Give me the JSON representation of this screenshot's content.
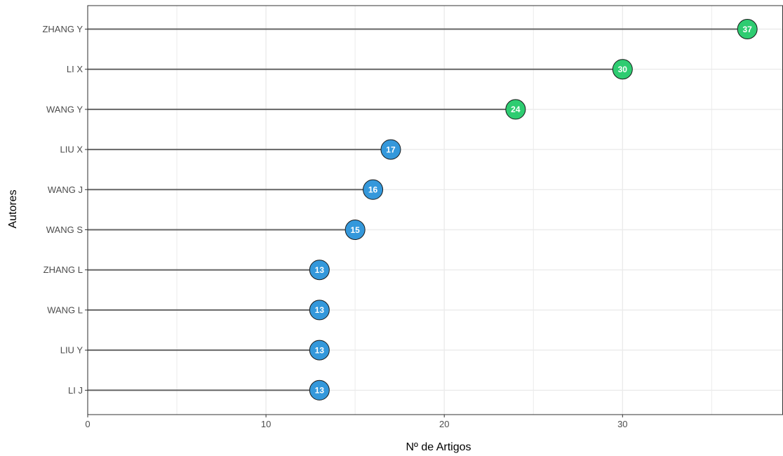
{
  "chart_data": {
    "type": "lollipop",
    "orientation": "horizontal",
    "xlabel": "Nº de Artigos",
    "ylabel": "Autores",
    "xlim": [
      0,
      39
    ],
    "x_ticks": [
      0,
      10,
      20,
      30
    ],
    "grid": true,
    "categories": [
      "ZHANG Y",
      "LI X",
      "WANG Y",
      "LIU X",
      "WANG J",
      "WANG S",
      "ZHANG L",
      "WANG L",
      "LIU Y",
      "LI J"
    ],
    "values": [
      37,
      30,
      24,
      17,
      16,
      15,
      13,
      13,
      13,
      13
    ],
    "point_colors": [
      "#2ecc71",
      "#2ecc71",
      "#2ecc71",
      "#3498db",
      "#3498db",
      "#3498db",
      "#3498db",
      "#3498db",
      "#3498db",
      "#3498db"
    ],
    "stem_color": "#666666",
    "point_edge_color": "#1a1a1a",
    "panel_border_color": "#333333",
    "grid_color": "#ebebeb"
  }
}
